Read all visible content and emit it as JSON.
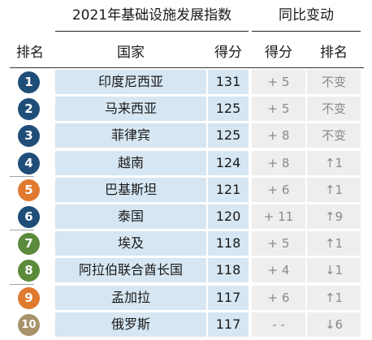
{
  "header": {
    "group_index": "2021年基础设施发展指数",
    "group_change": "同比变动"
  },
  "columns": {
    "rank": "排名",
    "country": "国家",
    "score": "得分",
    "score_change": "得分",
    "rank_change": "排名"
  },
  "rows": [
    {
      "rank": "1",
      "country": "印度尼西亚",
      "score": "131",
      "score_change": "+ 5",
      "rank_change": "不变",
      "badge_color": "#1f4e79"
    },
    {
      "rank": "2",
      "country": "马来西亚",
      "score": "125",
      "score_change": "+ 5",
      "rank_change": "不变",
      "badge_color": "#1f4e79"
    },
    {
      "rank": "3",
      "country": "菲律宾",
      "score": "125",
      "score_change": "+ 8",
      "rank_change": "不变",
      "badge_color": "#1f4e79"
    },
    {
      "rank": "4",
      "country": "越南",
      "score": "124",
      "score_change": "+ 8",
      "rank_change": "↑1",
      "badge_color": "#1f4e79"
    },
    {
      "rank": "5",
      "country": "巴基斯坦",
      "score": "121",
      "score_change": "+ 6",
      "rank_change": "↑1",
      "badge_color": "#e07a2e"
    },
    {
      "rank": "6",
      "country": "泰国",
      "score": "120",
      "score_change": "+ 11",
      "rank_change": "↑9",
      "badge_color": "#1f4e79"
    },
    {
      "rank": "7",
      "country": "埃及",
      "score": "118",
      "score_change": "+ 5",
      "rank_change": "↑1",
      "badge_color": "#5a8a3a"
    },
    {
      "rank": "8",
      "country": "阿拉伯联合酋长国",
      "score": "118",
      "score_change": "+ 4",
      "rank_change": "↓1",
      "badge_color": "#5a8a3a"
    },
    {
      "rank": "9",
      "country": "孟加拉",
      "score": "117",
      "score_change": "+ 6",
      "rank_change": "↑1",
      "badge_color": "#e07a2e"
    },
    {
      "rank": "10",
      "country": "俄罗斯",
      "score": "117",
      "score_change": "- -",
      "rank_change": "↓6",
      "badge_color": "#a8926a"
    }
  ]
}
